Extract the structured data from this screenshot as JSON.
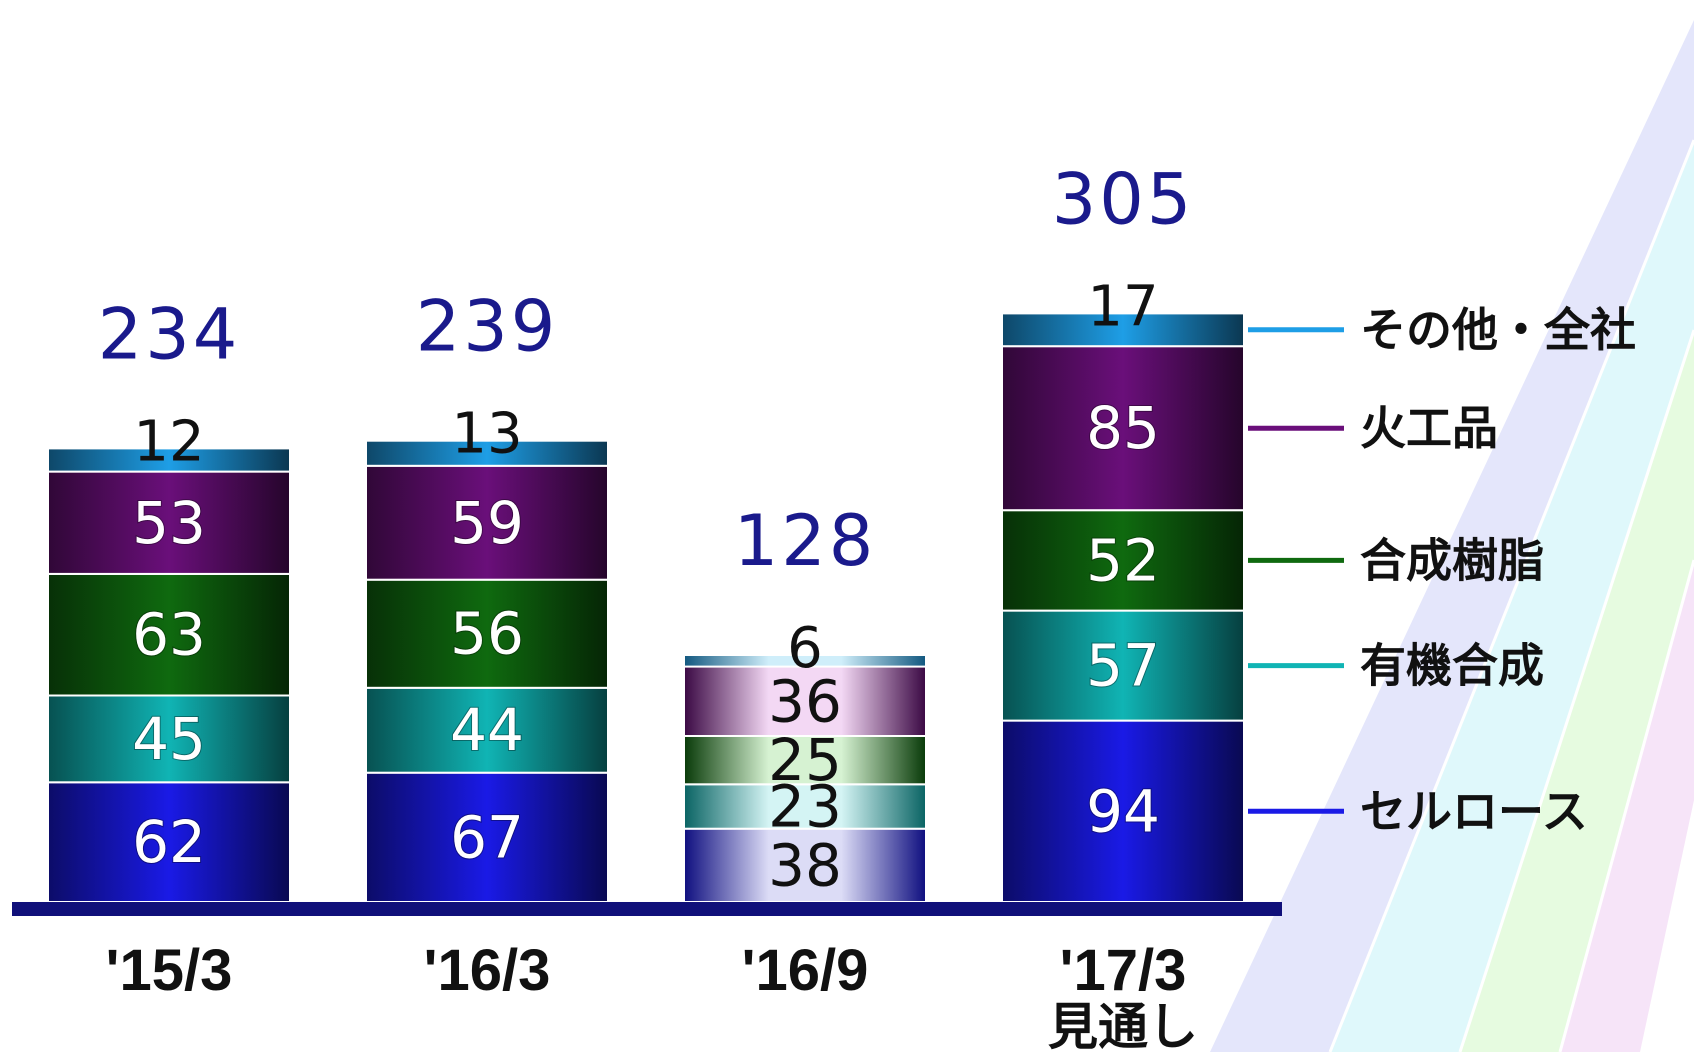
{
  "chart_data": {
    "type": "bar",
    "stacked": true,
    "categories": [
      "'15/3",
      "'16/3",
      "'16/9",
      "'17/3"
    ],
    "category_sublabels": [
      "",
      "",
      "",
      "見通し"
    ],
    "totals": [
      234,
      239,
      128,
      305
    ],
    "series": [
      {
        "name": "セルロース",
        "color": "#1a1ae6",
        "light_color": "#dcdcf6",
        "values": [
          62,
          67,
          38,
          94
        ]
      },
      {
        "name": "有機合成",
        "color": "#10b4b4",
        "light_color": "#d4f4f4",
        "values": [
          45,
          44,
          23,
          57
        ]
      },
      {
        "name": "合成樹脂",
        "color": "#0f6a0f",
        "light_color": "#d6f2d2",
        "values": [
          63,
          56,
          25,
          52
        ]
      },
      {
        "name": "火工品",
        "color": "#6a0f7a",
        "light_color": "#f3d8f4",
        "values": [
          53,
          59,
          36,
          85
        ]
      },
      {
        "name": "その他・全社",
        "color": "#1e9ee6",
        "light_color": "#cfeefa",
        "values": [
          12,
          13,
          6,
          17
        ]
      }
    ],
    "light_categories": [
      "'16/9"
    ],
    "legend_position": "right",
    "ylim": [
      0,
      305
    ]
  }
}
